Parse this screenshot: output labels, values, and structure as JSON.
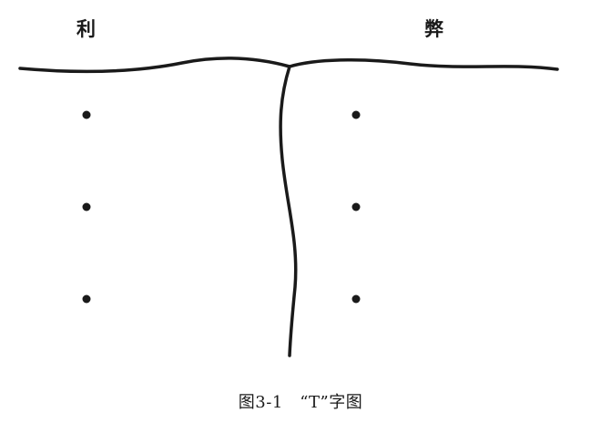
{
  "headings": {
    "left": "利",
    "right": "弊"
  },
  "columns": {
    "left": {
      "bullet_count": 3
    },
    "right": {
      "bullet_count": 3
    }
  },
  "caption": "图3-1　“T”字图",
  "colors": {
    "ink": "#1a1a1a",
    "background": "#ffffff"
  }
}
